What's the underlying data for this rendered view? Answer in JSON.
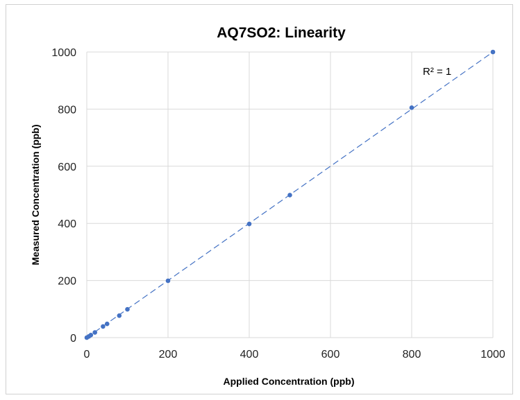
{
  "chart_data": {
    "type": "scatter",
    "title": "AQ7SO2: Linearity",
    "xlabel": "Applied Concentration (ppb)",
    "ylabel": "Measured Concentration (ppb)",
    "xlim": [
      0,
      1000
    ],
    "ylim": [
      0,
      1000
    ],
    "xticks": [
      0,
      200,
      400,
      600,
      800,
      1000
    ],
    "yticks": [
      0,
      200,
      400,
      600,
      800,
      1000
    ],
    "grid": true,
    "series": [
      {
        "points": [
          {
            "x": 0,
            "y": 0
          },
          {
            "x": 5,
            "y": 4
          },
          {
            "x": 10,
            "y": 9
          },
          {
            "x": 20,
            "y": 18
          },
          {
            "x": 40,
            "y": 39
          },
          {
            "x": 50,
            "y": 48
          },
          {
            "x": 80,
            "y": 77
          },
          {
            "x": 100,
            "y": 99
          },
          {
            "x": 200,
            "y": 199
          },
          {
            "x": 400,
            "y": 398
          },
          {
            "x": 500,
            "y": 499
          },
          {
            "x": 800,
            "y": 805
          },
          {
            "x": 1000,
            "y": 1000
          }
        ],
        "color": "#4472c4"
      }
    ],
    "trendline": {
      "type": "linear",
      "style": "dashed",
      "color": "#4472c4",
      "from": [
        0,
        0
      ],
      "to": [
        1000,
        1000
      ],
      "label": "R² = 1"
    }
  }
}
